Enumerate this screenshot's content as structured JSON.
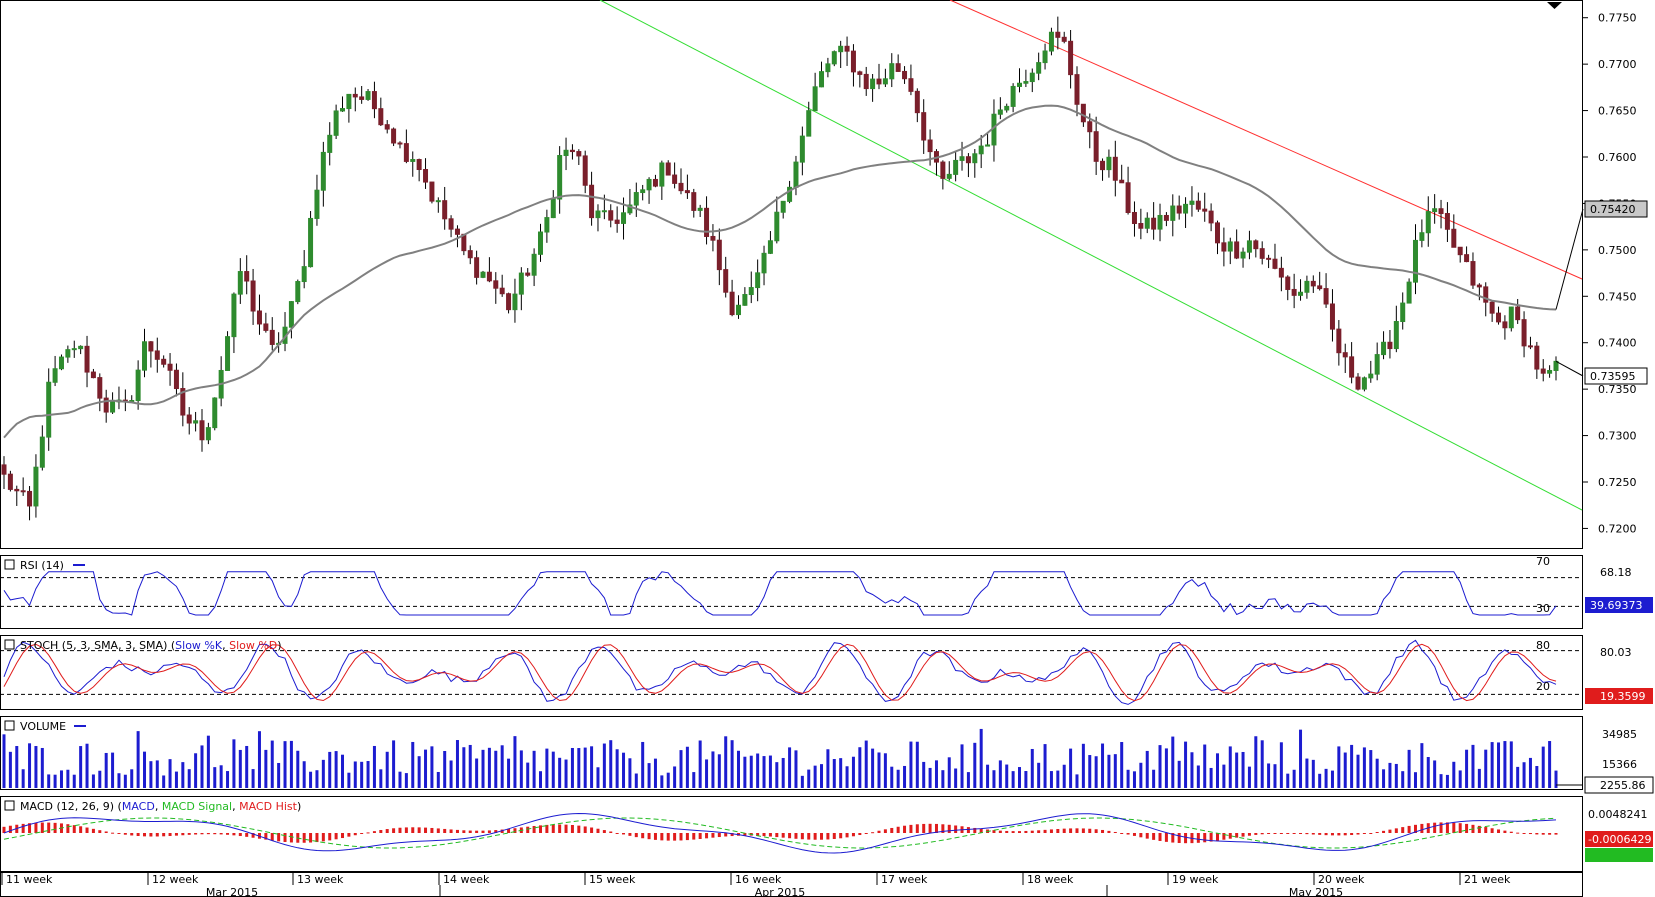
{
  "chart_data": {
    "type": "candlestick",
    "colors": {
      "bull": "#2e8b2e",
      "bear": "#7a1f2b",
      "ma": "#808080",
      "trend_upper": "#ff3030",
      "trend_lower": "#33dd33",
      "rsi": "#1c1cd0",
      "stoch_k": "#1c1cd0",
      "stoch_d": "#e01c1c",
      "volume": "#1c1cd0",
      "macd": "#1c1cd0",
      "macd_signal": "#22bb22",
      "macd_hist": "#e01c1c"
    },
    "price_axis": {
      "ticks": [
        "0.7750",
        "0.7700",
        "0.7650",
        "0.7600",
        "0.7550",
        "0.7500",
        "0.7450",
        "0.7400",
        "0.7350",
        "0.7300",
        "0.7250",
        "0.7200"
      ],
      "range": [
        0.718,
        0.7768
      ]
    },
    "moving_average_last": "0.75420",
    "last_price": "0.73595",
    "price_key_points": [
      [
        0,
        0.7255
      ],
      [
        10,
        0.722
      ],
      [
        18,
        0.736
      ],
      [
        28,
        0.74
      ],
      [
        40,
        0.733
      ],
      [
        48,
        0.733
      ],
      [
        55,
        0.74
      ],
      [
        62,
        0.738
      ],
      [
        70,
        0.732
      ],
      [
        78,
        0.73
      ],
      [
        85,
        0.738
      ],
      [
        92,
        0.748
      ],
      [
        98,
        0.743
      ],
      [
        104,
        0.739
      ],
      [
        110,
        0.742
      ],
      [
        116,
        0.748
      ],
      [
        122,
        0.758
      ],
      [
        128,
        0.764
      ],
      [
        134,
        0.767
      ],
      [
        142,
        0.766
      ],
      [
        148,
        0.764
      ],
      [
        154,
        0.761
      ],
      [
        160,
        0.76
      ],
      [
        166,
        0.756
      ],
      [
        172,
        0.753
      ],
      [
        180,
        0.749
      ],
      [
        188,
        0.747
      ],
      [
        196,
        0.744
      ],
      [
        202,
        0.747
      ],
      [
        210,
        0.752
      ],
      [
        216,
        0.76
      ],
      [
        222,
        0.761
      ],
      [
        228,
        0.754
      ],
      [
        234,
        0.753
      ],
      [
        242,
        0.754
      ],
      [
        250,
        0.757
      ],
      [
        258,
        0.759
      ],
      [
        264,
        0.756
      ],
      [
        270,
        0.754
      ],
      [
        276,
        0.75
      ],
      [
        282,
        0.744
      ],
      [
        290,
        0.745
      ],
      [
        296,
        0.749
      ],
      [
        302,
        0.755
      ],
      [
        310,
        0.762
      ],
      [
        316,
        0.768
      ],
      [
        322,
        0.771
      ],
      [
        328,
        0.771
      ],
      [
        334,
        0.768
      ],
      [
        340,
        0.768
      ],
      [
        346,
        0.77
      ],
      [
        352,
        0.768
      ],
      [
        358,
        0.762
      ],
      [
        364,
        0.757
      ],
      [
        370,
        0.759
      ],
      [
        376,
        0.76
      ],
      [
        382,
        0.762
      ],
      [
        388,
        0.766
      ],
      [
        394,
        0.768
      ],
      [
        400,
        0.77
      ],
      [
        406,
        0.773
      ],
      [
        412,
        0.772
      ],
      [
        418,
        0.765
      ],
      [
        424,
        0.76
      ],
      [
        430,
        0.759
      ],
      [
        436,
        0.755
      ],
      [
        442,
        0.752
      ],
      [
        448,
        0.753
      ],
      [
        454,
        0.754
      ],
      [
        460,
        0.755
      ],
      [
        466,
        0.754
      ],
      [
        472,
        0.751
      ],
      [
        478,
        0.75
      ],
      [
        484,
        0.751
      ],
      [
        490,
        0.749
      ],
      [
        496,
        0.747
      ],
      [
        502,
        0.745
      ],
      [
        508,
        0.747
      ],
      [
        514,
        0.743
      ],
      [
        520,
        0.738
      ],
      [
        526,
        0.736
      ],
      [
        532,
        0.737
      ],
      [
        538,
        0.74
      ],
      [
        544,
        0.745
      ],
      [
        550,
        0.752
      ],
      [
        556,
        0.754
      ],
      [
        562,
        0.751
      ],
      [
        568,
        0.748
      ],
      [
        574,
        0.745
      ],
      [
        580,
        0.742
      ],
      [
        586,
        0.743
      ],
      [
        592,
        0.74
      ],
      [
        598,
        0.736
      ],
      [
        603,
        0.737
      ]
    ],
    "indicators": [
      {
        "name": "RSI",
        "label": "RSI (14)",
        "levels": [
          "70",
          "30"
        ],
        "right_labels": [
          "68.18"
        ],
        "last": "39.69373"
      },
      {
        "name": "STOCH",
        "label": "STOCH (5, 3, SMA, 3, SMA)",
        "series": [
          "Slow %K",
          "Slow %D"
        ],
        "levels": [
          "80",
          "20"
        ],
        "right_labels": [
          "80.03"
        ],
        "last": "19.3599"
      },
      {
        "name": "VOLUME",
        "label": "VOLUME",
        "right_labels": [
          "34985",
          "15366"
        ],
        "last": "2255.86"
      },
      {
        "name": "MACD",
        "label": "MACD (12, 26, 9)",
        "series": [
          "MACD",
          "MACD Signal",
          "MACD Hist"
        ],
        "right_labels": [
          "0.0048241"
        ],
        "last": "-0.0006429"
      }
    ],
    "x_axis": {
      "weeks": [
        "11 week",
        "12 week",
        "13 week",
        "14 week",
        "15 week",
        "16 week",
        "17 week",
        "18 week",
        "19 week",
        "20 week",
        "21 week"
      ],
      "months": [
        "Mar 2015",
        "Apr 2015",
        "May 2015"
      ]
    }
  }
}
